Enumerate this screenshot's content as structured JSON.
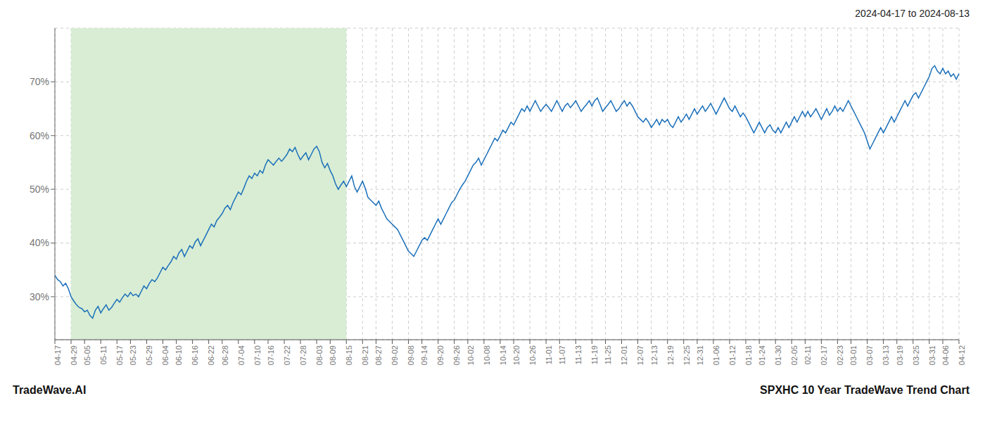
{
  "chart_data": {
    "type": "line",
    "title": "SPXHC 10 Year TradeWave Trend Chart",
    "subtitle": "2024-04-17 to 2024-08-13",
    "annotations": [
      "TradeWave.AI"
    ],
    "color": "#1a6fba",
    "grid": true,
    "ylim": [
      22,
      80
    ],
    "yticks": [
      {
        "value": 30,
        "label": "30%"
      },
      {
        "value": 40,
        "label": "40%"
      },
      {
        "value": 50,
        "label": "50%"
      },
      {
        "value": 60,
        "label": "60%"
      },
      {
        "value": 70,
        "label": "70%"
      }
    ],
    "highlight": {
      "x": [
        "04-29",
        "08-15"
      ],
      "color": "#d8edd4"
    },
    "categories": [
      "04-17",
      null,
      null,
      null,
      null,
      null,
      "04-29",
      null,
      null,
      null,
      null,
      "05-05",
      null,
      null,
      null,
      null,
      null,
      "05-11",
      null,
      null,
      null,
      null,
      null,
      "05-17",
      null,
      null,
      null,
      null,
      "05-23",
      null,
      null,
      null,
      null,
      null,
      "05-29",
      null,
      null,
      null,
      null,
      null,
      "06-04",
      null,
      null,
      null,
      null,
      "06-10",
      null,
      null,
      null,
      null,
      null,
      "06-16",
      null,
      null,
      null,
      null,
      null,
      "06-22",
      null,
      null,
      null,
      null,
      "06-28",
      null,
      null,
      null,
      null,
      null,
      "07-04",
      null,
      null,
      null,
      null,
      null,
      "07-10",
      null,
      null,
      null,
      null,
      "07-16",
      null,
      null,
      null,
      null,
      null,
      "07-22",
      null,
      null,
      null,
      null,
      null,
      "07-28",
      null,
      null,
      null,
      null,
      null,
      "08-03",
      null,
      null,
      null,
      null,
      "08-09",
      null,
      null,
      null,
      null,
      null,
      "08-15",
      null,
      null,
      null,
      null,
      null,
      "08-21",
      null,
      null,
      null,
      null,
      "08-27",
      null,
      null,
      null,
      null,
      null,
      "09-02",
      null,
      null,
      null,
      null,
      null,
      "09-08",
      null,
      null,
      null,
      null,
      "09-14",
      null,
      null,
      null,
      null,
      null,
      "09-20",
      null,
      null,
      null,
      null,
      null,
      "09-26",
      null,
      null,
      null,
      null,
      "10-02",
      null,
      null,
      null,
      null,
      null,
      "10-08",
      null,
      null,
      null,
      null,
      null,
      "10-14",
      null,
      null,
      null,
      null,
      "10-20",
      null,
      null,
      null,
      null,
      null,
      "10-26",
      null,
      null,
      null,
      null,
      null,
      "11-01",
      null,
      null,
      null,
      null,
      "11-07",
      null,
      null,
      null,
      null,
      null,
      "11-13",
      null,
      null,
      null,
      null,
      null,
      "11-19",
      null,
      null,
      null,
      null,
      "11-25",
      null,
      null,
      null,
      null,
      null,
      "12-01",
      null,
      null,
      null,
      null,
      null,
      "12-07",
      null,
      null,
      null,
      null,
      "12-13",
      null,
      null,
      null,
      null,
      null,
      "12-19",
      null,
      null,
      null,
      null,
      null,
      "12-25",
      null,
      null,
      null,
      null,
      "12-31",
      null,
      null,
      null,
      null,
      null,
      "01-06",
      null,
      null,
      null,
      null,
      null,
      "01-12",
      null,
      null,
      null,
      null,
      null,
      "01-18",
      null,
      null,
      null,
      null,
      "01-24",
      null,
      null,
      null,
      null,
      null,
      "01-30",
      null,
      null,
      null,
      null,
      null,
      "02-05",
      null,
      null,
      null,
      null,
      "02-11",
      null,
      null,
      null,
      null,
      null,
      "02-17",
      null,
      null,
      null,
      null,
      null,
      "02-23",
      null,
      null,
      null,
      null,
      "03-01",
      null,
      null,
      null,
      null,
      null,
      "03-07",
      null,
      null,
      null,
      null,
      null,
      "03-13",
      null,
      null,
      null,
      null,
      "03-19",
      null,
      null,
      null,
      null,
      null,
      "03-25",
      null,
      null,
      null,
      null,
      null,
      "03-31",
      null,
      null,
      null,
      null,
      "04-06",
      null,
      null,
      null,
      null,
      null,
      "04-12"
    ],
    "values": [
      34.0,
      33.2,
      32.8,
      32.0,
      32.5,
      31.5,
      30.0,
      29.2,
      28.5,
      28.0,
      27.8,
      27.2,
      27.5,
      26.5,
      26.0,
      27.5,
      28.2,
      27.0,
      27.8,
      28.5,
      27.5,
      28.0,
      28.8,
      29.5,
      29.0,
      29.8,
      30.5,
      30.0,
      30.8,
      30.2,
      30.5,
      30.0,
      31.0,
      32.0,
      31.5,
      32.5,
      33.2,
      32.8,
      33.5,
      34.5,
      35.5,
      35.0,
      35.8,
      36.5,
      37.5,
      37.0,
      38.2,
      38.8,
      37.5,
      38.5,
      39.5,
      39.0,
      40.2,
      40.8,
      39.5,
      40.5,
      41.5,
      42.5,
      43.5,
      43.0,
      44.2,
      44.8,
      45.5,
      46.5,
      47.0,
      46.2,
      47.5,
      48.5,
      49.5,
      49.0,
      50.2,
      51.5,
      52.5,
      52.0,
      53.0,
      52.5,
      53.5,
      53.0,
      54.5,
      55.5,
      55.0,
      54.5,
      55.2,
      55.8,
      55.2,
      55.8,
      56.5,
      57.5,
      57.0,
      57.8,
      56.5,
      55.5,
      56.2,
      56.8,
      55.5,
      56.5,
      57.5,
      58.0,
      57.0,
      55.0,
      54.0,
      54.8,
      53.5,
      52.5,
      51.0,
      50.0,
      50.8,
      51.5,
      50.5,
      51.5,
      52.5,
      50.5,
      49.5,
      50.5,
      51.5,
      50.2,
      48.5,
      48.0,
      47.5,
      47.0,
      47.8,
      46.5,
      45.5,
      44.5,
      44.0,
      43.5,
      43.0,
      42.5,
      41.5,
      40.5,
      39.5,
      38.5,
      38.0,
      37.5,
      38.5,
      39.5,
      40.5,
      41.0,
      40.5,
      41.5,
      42.5,
      43.5,
      44.5,
      43.5,
      44.5,
      45.5,
      46.5,
      47.5,
      48.0,
      49.0,
      50.0,
      50.8,
      51.5,
      52.5,
      53.5,
      54.5,
      55.0,
      55.8,
      54.5,
      55.5,
      56.5,
      57.5,
      58.5,
      59.5,
      59.0,
      60.0,
      61.0,
      60.5,
      61.5,
      62.5,
      62.0,
      63.0,
      64.0,
      65.0,
      64.5,
      65.5,
      64.5,
      65.5,
      66.5,
      65.5,
      64.5,
      65.2,
      65.8,
      65.2,
      64.5,
      65.5,
      66.5,
      65.5,
      64.5,
      65.5,
      66.0,
      65.2,
      65.8,
      66.5,
      65.5,
      64.5,
      65.2,
      65.8,
      66.5,
      65.5,
      66.5,
      67.0,
      65.8,
      64.5,
      65.2,
      65.8,
      66.5,
      65.5,
      64.5,
      65.0,
      65.8,
      66.5,
      65.5,
      66.2,
      65.5,
      64.5,
      63.5,
      63.0,
      62.5,
      63.2,
      62.5,
      61.5,
      62.2,
      63.0,
      62.0,
      63.0,
      62.5,
      63.0,
      62.0,
      61.5,
      62.5,
      63.5,
      62.5,
      63.2,
      64.0,
      63.0,
      64.0,
      65.0,
      64.0,
      64.8,
      65.5,
      64.5,
      65.2,
      66.0,
      65.0,
      64.0,
      65.0,
      66.0,
      67.0,
      66.0,
      65.0,
      64.5,
      65.5,
      64.5,
      63.5,
      64.2,
      63.5,
      62.5,
      61.5,
      60.5,
      61.5,
      62.5,
      61.5,
      60.5,
      61.5,
      62.0,
      61.0,
      60.5,
      61.5,
      60.5,
      61.5,
      62.5,
      61.5,
      62.5,
      63.5,
      62.5,
      63.5,
      64.5,
      63.5,
      64.5,
      63.5,
      64.2,
      65.0,
      64.0,
      63.0,
      64.0,
      65.0,
      63.8,
      64.5,
      65.5,
      64.5,
      65.2,
      64.5,
      65.5,
      66.5,
      65.5,
      64.5,
      63.5,
      62.5,
      61.5,
      60.5,
      59.0,
      57.5,
      58.5,
      59.5,
      60.5,
      61.5,
      60.5,
      61.5,
      62.5,
      63.5,
      62.5,
      63.5,
      64.5,
      65.5,
      66.5,
      65.5,
      66.5,
      67.5,
      68.0,
      67.0,
      68.0,
      69.0,
      70.0,
      71.0,
      72.5,
      73.0,
      72.0,
      71.5,
      72.5,
      71.5,
      72.0,
      71.0,
      71.5,
      70.5,
      71.5
    ]
  }
}
